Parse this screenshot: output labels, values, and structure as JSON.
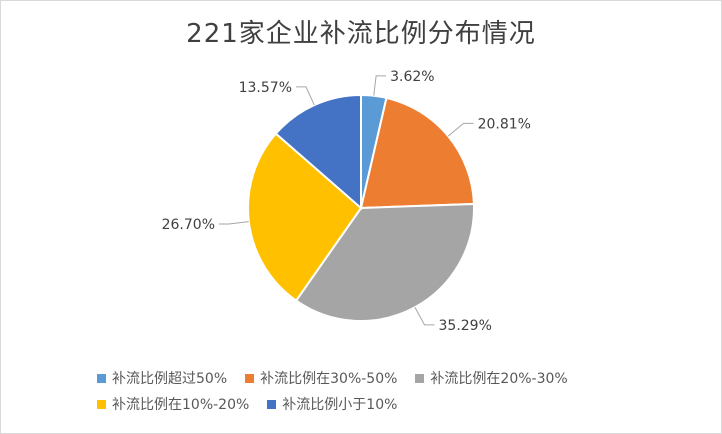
{
  "chart_data": {
    "type": "pie",
    "title": "221家企业补流比例分布情况",
    "categories": [
      "补流比例超过50%",
      "补流比例在30%-50%",
      "补流比例在20%-30%",
      "补流比例在10%-20%",
      "补流比例小于10%"
    ],
    "values": [
      3.62,
      20.81,
      35.29,
      26.7,
      13.57
    ],
    "labels": [
      "3.62%",
      "20.81%",
      "35.29%",
      "26.70%",
      "13.57%"
    ],
    "colors": [
      "#5B9BD5",
      "#ED7D31",
      "#A5A5A5",
      "#FFC000",
      "#4472C4"
    ],
    "legend_position": "bottom",
    "start_angle": "12 o'clock, clockwise"
  }
}
